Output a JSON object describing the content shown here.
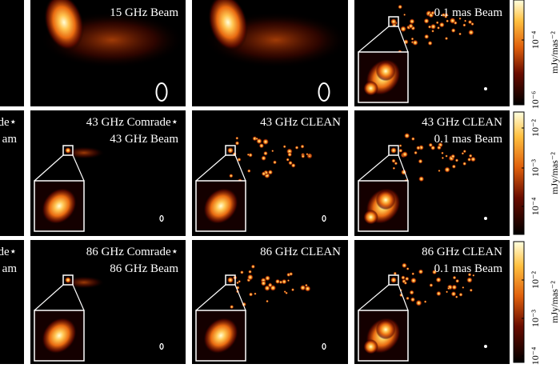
{
  "rows": [
    {
      "panels": [
        {
          "lines": []
        },
        {
          "lines": [
            "15 GHz Beam"
          ]
        },
        {
          "lines": []
        },
        {
          "lines": [
            "0.1 mas Beam"
          ]
        }
      ],
      "colorbar": {
        "ticks": [
          "10⁻⁴",
          "10⁻⁶"
        ],
        "label": "mJy/mas⁻²"
      }
    },
    {
      "panels": [
        {
          "lines": [
            "de⋆",
            "am"
          ]
        },
        {
          "lines": [
            "43 GHz Comrade⋆",
            "43 GHz Beam"
          ]
        },
        {
          "lines": [
            "43 GHz CLEAN"
          ]
        },
        {
          "lines": [
            "43 GHz CLEAN",
            "0.1 mas Beam"
          ]
        }
      ],
      "colorbar": {
        "ticks": [
          "10⁻²",
          "10⁻³",
          "10⁻⁴"
        ],
        "label": "mJy/mas⁻²"
      }
    },
    {
      "panels": [
        {
          "lines": [
            "de⋆",
            "am"
          ]
        },
        {
          "lines": [
            "86 GHz Comrade⋆",
            "86 GHz Beam"
          ]
        },
        {
          "lines": [
            "86 GHz CLEAN"
          ]
        },
        {
          "lines": [
            "86 GHz CLEAN",
            "0.1 mas Beam"
          ]
        }
      ],
      "colorbar": {
        "ticks": [
          "10⁻²",
          "10⁻³",
          "10⁻⁴"
        ],
        "label": "mJy/mas⁻²"
      }
    }
  ]
}
